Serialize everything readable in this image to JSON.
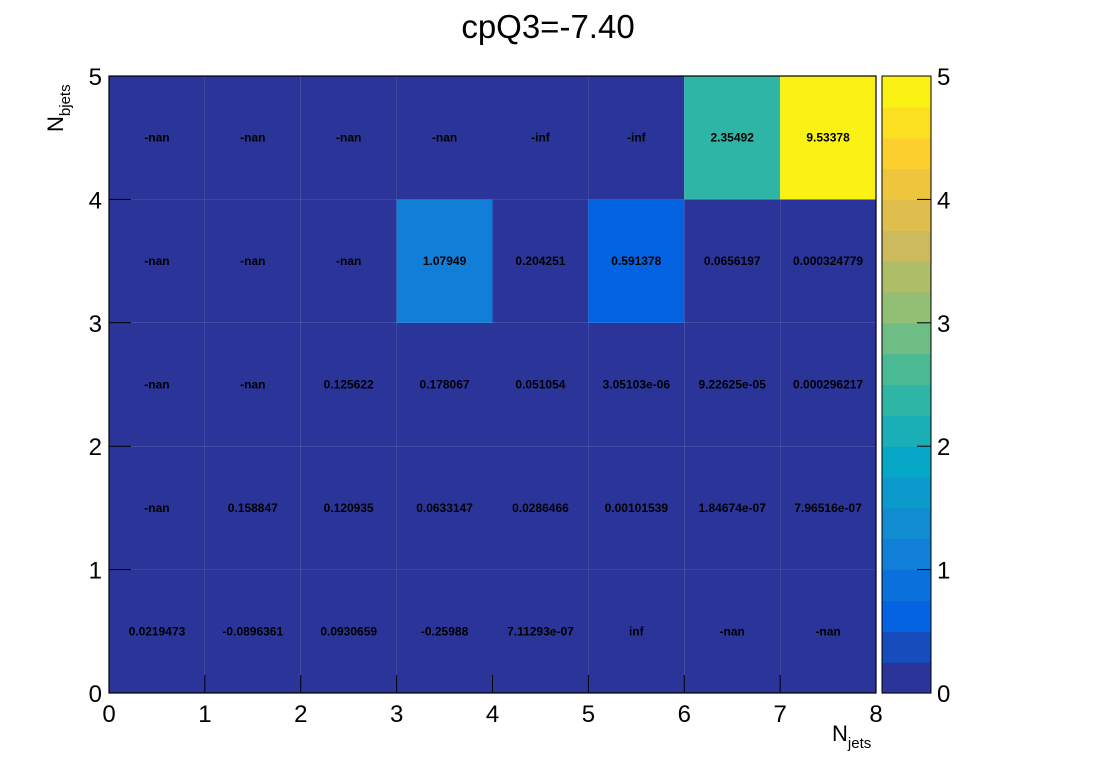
{
  "chart_data": {
    "type": "heatmap",
    "title": "cpQ3=-7.40",
    "xlabel": {
      "main": "N",
      "sub": "jets"
    },
    "ylabel": {
      "main": "N",
      "sub": "bjets"
    },
    "xlim": [
      0,
      8
    ],
    "ylim": [
      0,
      5
    ],
    "zlim": [
      0,
      5
    ],
    "x_ticks": [
      "0",
      "1",
      "2",
      "3",
      "4",
      "5",
      "6",
      "7",
      "8"
    ],
    "y_ticks": [
      "0",
      "1",
      "2",
      "3",
      "4",
      "5"
    ],
    "z_ticks": [
      "0",
      "1",
      "2",
      "3",
      "4",
      "5"
    ],
    "color_scale": "kBird",
    "color_stops": [
      "#352a87",
      "#0363e1",
      "#1485d4",
      "#06a7c6",
      "#38b99e",
      "#92bf73",
      "#d9ba56",
      "#fcce2e",
      "#f9fb0e"
    ],
    "cells": [
      {
        "x": 0,
        "y": 0,
        "label": "0.0219473",
        "value": 0.0219473
      },
      {
        "x": 1,
        "y": 0,
        "label": "-0.0896361",
        "value": -0.0896361
      },
      {
        "x": 2,
        "y": 0,
        "label": "0.0930659",
        "value": 0.0930659
      },
      {
        "x": 3,
        "y": 0,
        "label": "-0.25988",
        "value": -0.25988
      },
      {
        "x": 4,
        "y": 0,
        "label": "7.11293e-07",
        "value": 7.11293e-07
      },
      {
        "x": 5,
        "y": 0,
        "label": "inf",
        "value": null
      },
      {
        "x": 6,
        "y": 0,
        "label": "-nan",
        "value": null
      },
      {
        "x": 7,
        "y": 0,
        "label": "-nan",
        "value": null
      },
      {
        "x": 0,
        "y": 1,
        "label": "-nan",
        "value": null
      },
      {
        "x": 1,
        "y": 1,
        "label": "0.158847",
        "value": 0.158847
      },
      {
        "x": 2,
        "y": 1,
        "label": "0.120935",
        "value": 0.120935
      },
      {
        "x": 3,
        "y": 1,
        "label": "0.0633147",
        "value": 0.0633147
      },
      {
        "x": 4,
        "y": 1,
        "label": "0.0286466",
        "value": 0.0286466
      },
      {
        "x": 5,
        "y": 1,
        "label": "0.00101539",
        "value": 0.00101539
      },
      {
        "x": 6,
        "y": 1,
        "label": "1.84674e-07",
        "value": 1.84674e-07
      },
      {
        "x": 7,
        "y": 1,
        "label": "7.96516e-07",
        "value": 7.96516e-07
      },
      {
        "x": 0,
        "y": 2,
        "label": "-nan",
        "value": null
      },
      {
        "x": 1,
        "y": 2,
        "label": "-nan",
        "value": null
      },
      {
        "x": 2,
        "y": 2,
        "label": "0.125622",
        "value": 0.125622
      },
      {
        "x": 3,
        "y": 2,
        "label": "0.178067",
        "value": 0.178067
      },
      {
        "x": 4,
        "y": 2,
        "label": "0.051054",
        "value": 0.051054
      },
      {
        "x": 5,
        "y": 2,
        "label": "3.05103e-06",
        "value": 3.05103e-06
      },
      {
        "x": 6,
        "y": 2,
        "label": "9.22625e-05",
        "value": 9.22625e-05
      },
      {
        "x": 7,
        "y": 2,
        "label": "0.000296217",
        "value": 0.000296217
      },
      {
        "x": 0,
        "y": 3,
        "label": "-nan",
        "value": null
      },
      {
        "x": 1,
        "y": 3,
        "label": "-nan",
        "value": null
      },
      {
        "x": 2,
        "y": 3,
        "label": "-nan",
        "value": null
      },
      {
        "x": 3,
        "y": 3,
        "label": "1.07949",
        "value": 1.07949
      },
      {
        "x": 4,
        "y": 3,
        "label": "0.204251",
        "value": 0.204251
      },
      {
        "x": 5,
        "y": 3,
        "label": "0.591378",
        "value": 0.591378
      },
      {
        "x": 6,
        "y": 3,
        "label": "0.0656197",
        "value": 0.0656197
      },
      {
        "x": 7,
        "y": 3,
        "label": "0.000324779",
        "value": 0.000324779
      },
      {
        "x": 0,
        "y": 4,
        "label": "-nan",
        "value": null
      },
      {
        "x": 1,
        "y": 4,
        "label": "-nan",
        "value": null
      },
      {
        "x": 2,
        "y": 4,
        "label": "-nan",
        "value": null
      },
      {
        "x": 3,
        "y": 4,
        "label": "-nan",
        "value": null
      },
      {
        "x": 4,
        "y": 4,
        "label": "-inf",
        "value": null
      },
      {
        "x": 5,
        "y": 4,
        "label": "-inf",
        "value": null
      },
      {
        "x": 6,
        "y": 4,
        "label": "2.35492",
        "value": 2.35492
      },
      {
        "x": 7,
        "y": 4,
        "label": "9.53378",
        "value": 9.53378
      }
    ]
  }
}
